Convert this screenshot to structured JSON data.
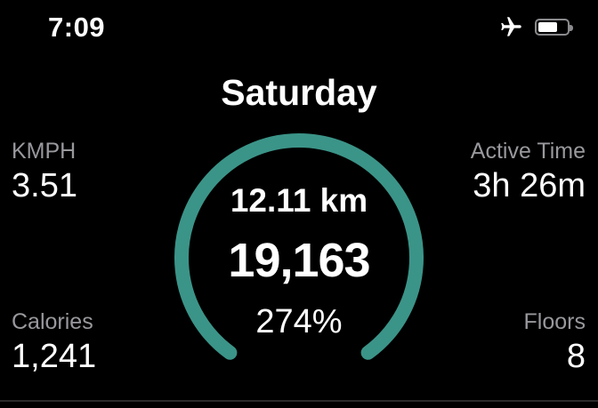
{
  "status_bar": {
    "time": "7:09",
    "airplane_mode_on": true,
    "battery": {
      "level_percent": 60
    }
  },
  "header": {
    "title": "Saturday"
  },
  "gauge": {
    "distance": "12.11 km",
    "steps": "19,163",
    "percent": "274%"
  },
  "metrics": {
    "top_left": {
      "label": "KMPH",
      "value": "3.51"
    },
    "top_right": {
      "label": "Active Time",
      "value": "3h 26m"
    },
    "bottom_left": {
      "label": "Calories",
      "value": "1,241"
    },
    "bottom_right": {
      "label": "Floors",
      "value": "8"
    }
  },
  "colors": {
    "background": "#000000",
    "ring": "#3b9488",
    "label": "#98989d",
    "value": "#ffffff",
    "divider": "#2b2b2b"
  }
}
